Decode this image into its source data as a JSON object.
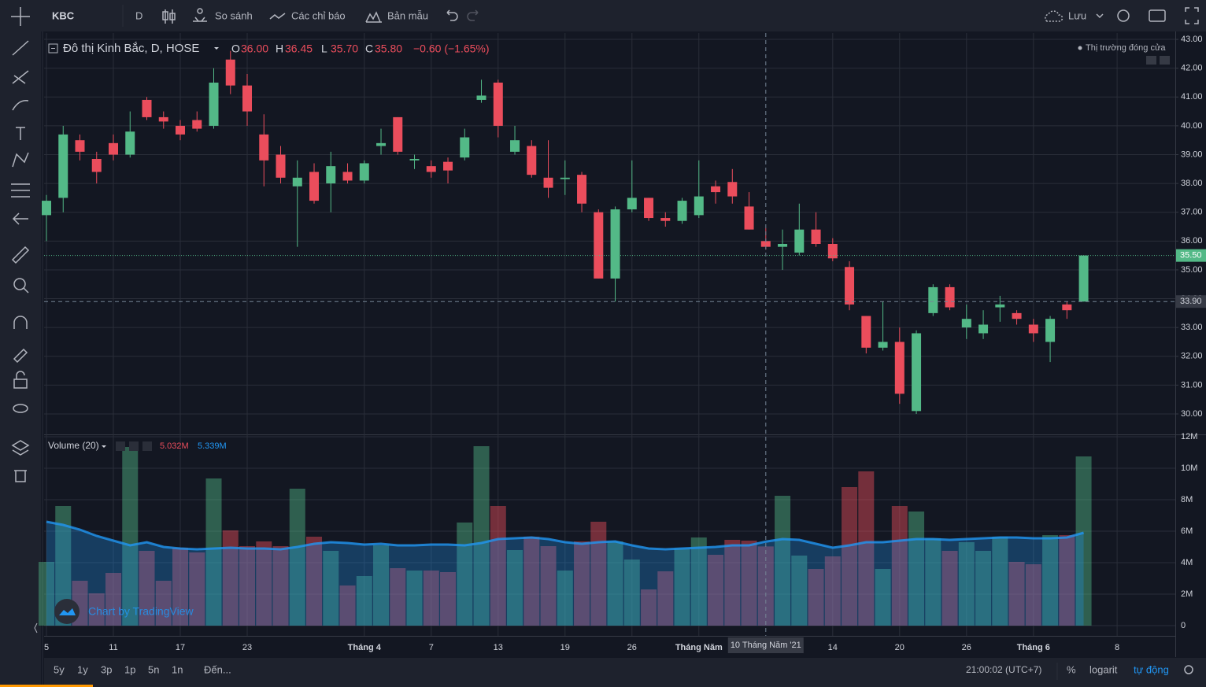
{
  "toolbar": {
    "symbol": "KBC",
    "interval": "D",
    "compare": "So sánh",
    "indicators": "Các chỉ báo",
    "templates": "Bản mẫu",
    "save": "Lưu"
  },
  "chart_data": {
    "type": "candlestick",
    "title": "Đô thị Kinh Bắc, D, HOSE",
    "ohlc_legend": [
      {
        "label": "O",
        "value": "36.00"
      },
      {
        "label": "H",
        "value": "36.45"
      },
      {
        "label": "L",
        "value": "35.70"
      },
      {
        "label": "C",
        "value": "35.80"
      }
    ],
    "change": "−0.60 (−1.65%)",
    "market_status": "Thị trường đóng cửa",
    "up_color": "#53b987",
    "down_color": "#eb4d5c",
    "open": [
      36.9,
      37.5,
      39.5,
      38.85,
      39.4,
      39.0,
      40.9,
      40.3,
      40.0,
      40.2,
      40.0,
      42.3,
      41.4,
      39.7,
      39.0,
      37.9,
      38.4,
      38.0,
      38.4,
      38.1,
      39.3,
      40.3,
      38.8,
      38.6,
      38.75,
      38.9,
      40.9,
      41.5,
      39.1,
      39.3,
      38.2,
      38.15,
      38.3,
      37.0,
      34.7,
      37.1,
      37.5,
      36.8,
      36.7,
      36.9,
      37.9,
      38.05,
      37.2,
      36.0,
      35.8,
      35.6,
      36.4,
      35.9,
      35.1,
      33.4,
      32.3,
      32.5,
      30.1,
      33.5,
      34.4,
      33.0,
      32.8,
      33.7,
      33.5,
      33.1,
      32.5,
      33.8,
      33.9
    ],
    "high": [
      37.6,
      40.0,
      39.7,
      39.1,
      39.7,
      40.5,
      41.0,
      40.5,
      40.2,
      40.5,
      42.0,
      42.6,
      41.8,
      40.4,
      39.3,
      38.8,
      38.7,
      39.1,
      38.7,
      38.8,
      39.9,
      40.3,
      39.0,
      38.8,
      38.9,
      39.9,
      41.6,
      41.6,
      40.0,
      39.5,
      39.5,
      38.8,
      38.4,
      37.1,
      37.2,
      38.8,
      37.5,
      37.0,
      37.5,
      38.8,
      38.1,
      38.5,
      37.7,
      36.45,
      36.4,
      37.3,
      37.0,
      36.1,
      35.3,
      33.4,
      33.9,
      33.0,
      32.9,
      34.5,
      34.5,
      33.8,
      33.6,
      34.1,
      33.6,
      33.3,
      33.4,
      33.9,
      35.5
    ],
    "low": [
      36.0,
      37.0,
      38.8,
      38.0,
      38.8,
      38.9,
      40.2,
      39.9,
      39.5,
      39.8,
      39.9,
      41.1,
      40.0,
      37.9,
      38.0,
      35.8,
      37.3,
      37.0,
      38.0,
      38.0,
      39.0,
      39.0,
      38.5,
      38.2,
      38.0,
      38.8,
      40.8,
      39.6,
      39.0,
      38.2,
      37.5,
      37.6,
      37.0,
      34.7,
      33.9,
      37.0,
      36.7,
      36.5,
      36.6,
      36.8,
      37.3,
      37.3,
      36.4,
      35.7,
      35.0,
      35.5,
      35.8,
      35.3,
      33.6,
      32.1,
      32.2,
      30.35,
      30.0,
      33.4,
      33.6,
      32.6,
      32.6,
      33.2,
      33.1,
      32.5,
      31.8,
      33.3,
      33.9
    ],
    "close": [
      37.4,
      39.7,
      39.1,
      38.4,
      39.0,
      39.8,
      40.3,
      40.15,
      39.7,
      39.9,
      41.5,
      41.4,
      40.5,
      38.8,
      38.2,
      38.2,
      37.4,
      38.6,
      38.1,
      38.7,
      39.4,
      39.1,
      38.85,
      38.4,
      38.45,
      39.6,
      41.05,
      40.0,
      39.5,
      38.3,
      37.85,
      38.2,
      37.3,
      34.7,
      37.1,
      37.5,
      36.8,
      36.7,
      37.4,
      37.55,
      37.7,
      37.55,
      36.4,
      35.8,
      35.9,
      36.4,
      35.9,
      35.4,
      33.8,
      32.3,
      32.5,
      30.7,
      32.8,
      34.4,
      33.7,
      33.3,
      33.1,
      33.8,
      33.3,
      32.8,
      33.3,
      33.6,
      35.5
    ],
    "ylim": [
      29.29,
      43.22
    ],
    "yticks": [
      {
        "value": 30,
        "label": "30.00"
      },
      {
        "value": 31,
        "label": "31.00"
      },
      {
        "value": 32,
        "label": "32.00"
      },
      {
        "value": 33,
        "label": "33.00"
      },
      {
        "value": 34,
        "label": "34.00"
      },
      {
        "value": 35,
        "label": "35.00"
      },
      {
        "value": 36,
        "label": "36.00"
      },
      {
        "value": 37,
        "label": "37.00"
      },
      {
        "value": 38,
        "label": "38.00"
      },
      {
        "value": 39,
        "label": "39.00"
      },
      {
        "value": 40,
        "label": "40.00"
      },
      {
        "value": 41,
        "label": "41.00"
      },
      {
        "value": 42,
        "label": "42.00"
      },
      {
        "value": 43,
        "label": "43.00"
      }
    ],
    "last_price": {
      "value": 35.5,
      "label": "35.50"
    },
    "crosshair": {
      "index": 43,
      "price": {
        "value": 33.9,
        "label": "33.90"
      },
      "date": "10 Tháng Năm '21"
    },
    "xlim": [
      0,
      67.62
    ],
    "xticks": [
      {
        "value": 0,
        "label": "5"
      },
      {
        "value": 4,
        "label": "11"
      },
      {
        "value": 8,
        "label": "17"
      },
      {
        "value": 12,
        "label": "23"
      },
      {
        "value": 19,
        "label": "Tháng 4"
      },
      {
        "value": 23,
        "label": "7"
      },
      {
        "value": 27,
        "label": "13"
      },
      {
        "value": 31,
        "label": "19"
      },
      {
        "value": 35,
        "label": "26"
      },
      {
        "value": 39,
        "label": "Tháng Năm"
      },
      {
        "value": 47,
        "label": "14"
      },
      {
        "value": 51,
        "label": "20"
      },
      {
        "value": 55,
        "label": "26"
      },
      {
        "value": 59,
        "label": "Tháng 6"
      },
      {
        "value": 64,
        "label": "8"
      }
    ],
    "volume": {
      "name": "Volume (20)",
      "legend_volume": "5.032M",
      "legend_ma": "5.339M",
      "ma_color": "#2196f3",
      "values": [
        4.05,
        7.6,
        2.85,
        2.05,
        3.35,
        11.35,
        4.75,
        2.85,
        4.95,
        4.65,
        9.35,
        6.05,
        5.05,
        5.35,
        5.05,
        8.7,
        5.65,
        4.75,
        2.55,
        3.15,
        5.1,
        3.65,
        3.5,
        3.5,
        3.4,
        6.55,
        11.4,
        7.6,
        4.8,
        5.65,
        5.05,
        3.5,
        5.35,
        6.6,
        5.35,
        4.2,
        2.3,
        3.45,
        4.9,
        5.6,
        4.5,
        5.45,
        5.4,
        5.032,
        8.25,
        4.45,
        3.6,
        4.4,
        8.8,
        9.8,
        3.6,
        7.6,
        7.25,
        5.55,
        4.75,
        5.3,
        4.75,
        5.65,
        4.05,
        3.9,
        5.75,
        5.75,
        10.75
      ],
      "ma": [
        6.6,
        6.4,
        6.1,
        5.7,
        5.4,
        5.1,
        5.3,
        5.0,
        4.9,
        4.85,
        4.9,
        4.95,
        4.9,
        4.9,
        4.85,
        5.0,
        5.2,
        5.3,
        5.25,
        5.15,
        5.2,
        5.1,
        5.1,
        5.15,
        5.15,
        5.1,
        5.25,
        5.5,
        5.55,
        5.6,
        5.5,
        5.3,
        5.2,
        5.3,
        5.35,
        5.1,
        4.9,
        4.85,
        4.9,
        4.95,
        5.0,
        5.1,
        5.1,
        5.339,
        5.5,
        5.45,
        5.2,
        4.95,
        5.1,
        5.3,
        5.3,
        5.4,
        5.5,
        5.5,
        5.45,
        5.5,
        5.55,
        5.6,
        5.6,
        5.55,
        5.55,
        5.6,
        5.9
      ],
      "ylim": [
        -0.65,
        12.1
      ],
      "yticks": [
        0,
        {
          "value": 2,
          "label": "2M"
        },
        {
          "value": 4,
          "label": "4M"
        },
        {
          "value": 6,
          "label": "6M"
        },
        {
          "value": 8,
          "label": "8M"
        },
        {
          "value": 10,
          "label": "10M"
        },
        {
          "value": 12,
          "label": "12M"
        }
      ]
    },
    "watermark": "Chart by TradingView"
  },
  "bottom_bar": {
    "ranges": [
      "5y",
      "1y",
      "3p",
      "1p",
      "5n",
      "1n"
    ],
    "goto": "Đến...",
    "time": "21:00:02 (UTC+7)",
    "percent": "%",
    "log": "logarit",
    "auto": "tự động"
  }
}
